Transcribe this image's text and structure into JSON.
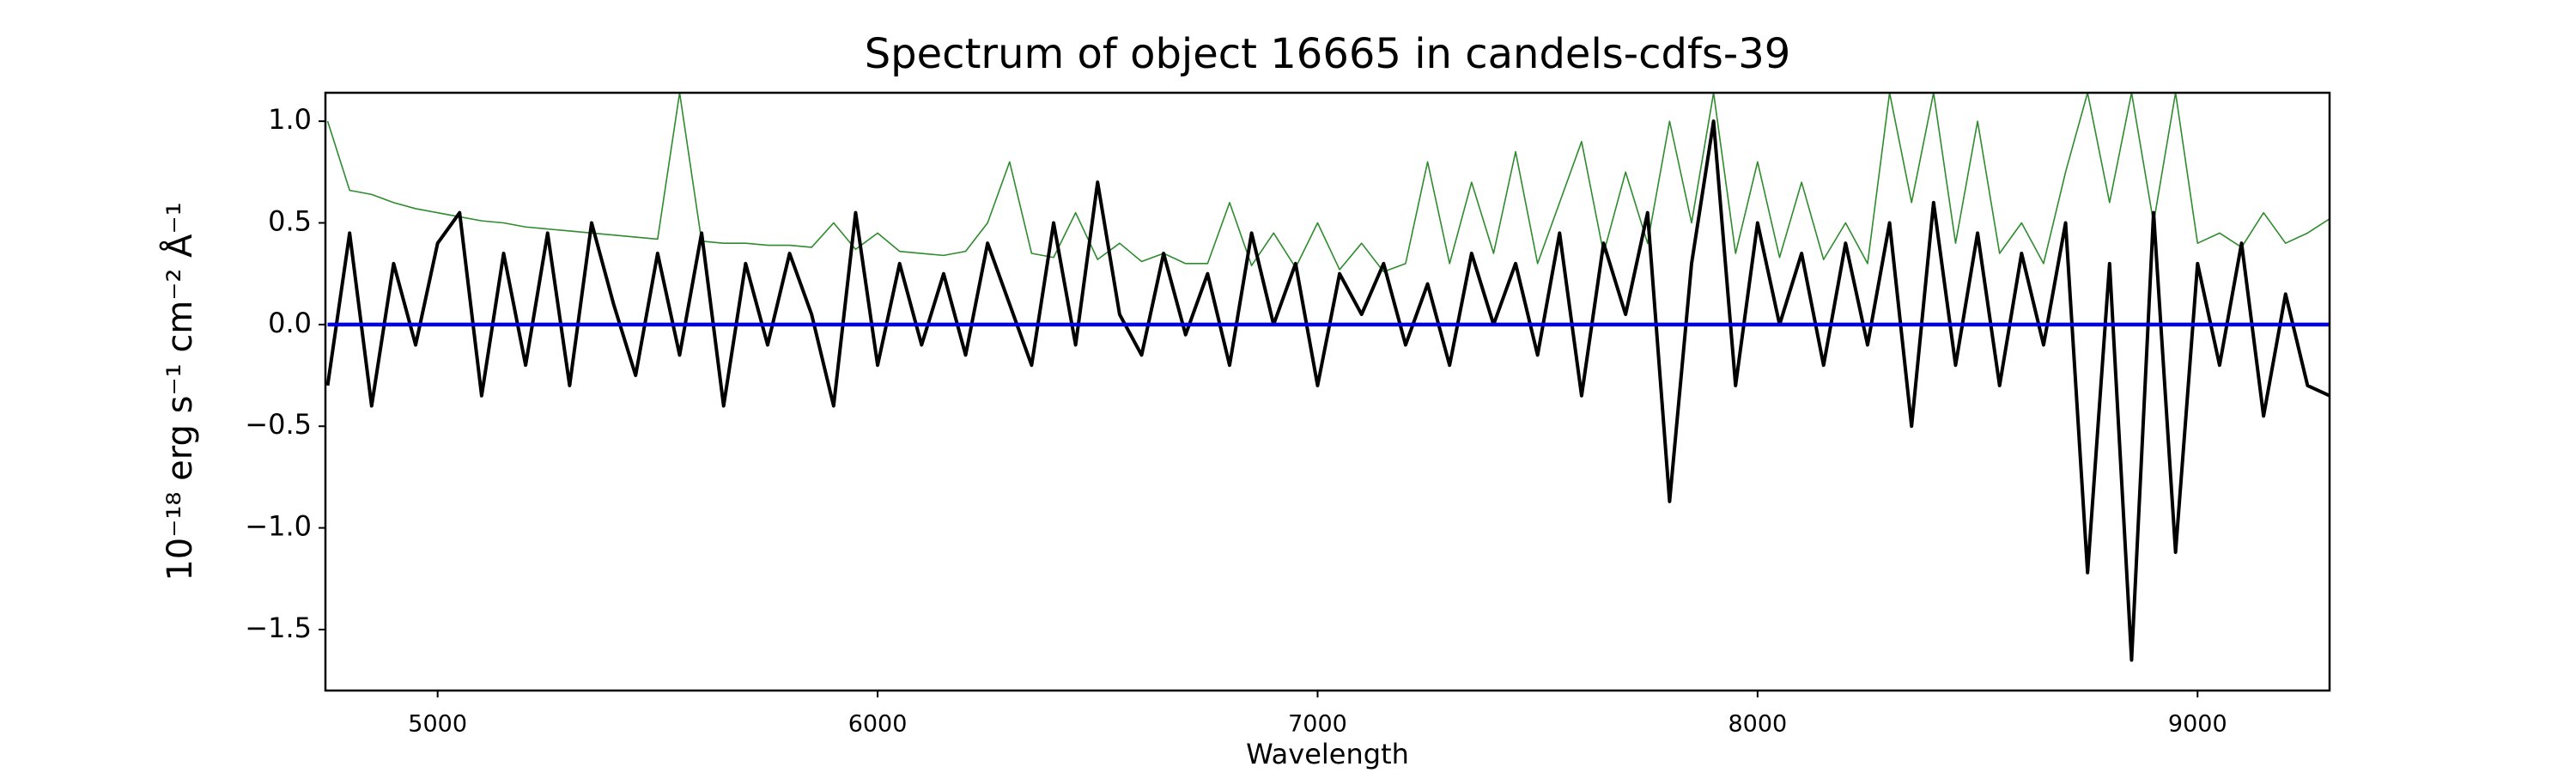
{
  "chart_data": {
    "type": "line",
    "title": "Spectrum of object 16665 in candels-cdfs-39",
    "xlabel": "Wavelength",
    "ylabel": "10⁻¹⁸ erg s⁻¹ cm⁻² Å⁻¹",
    "xlim": [
      4745,
      9300
    ],
    "ylim": [
      -1.8,
      1.14
    ],
    "xticks": [
      5000,
      6000,
      7000,
      8000,
      9000
    ],
    "yticks": [
      {
        "value": -1.5,
        "label": "−1.5"
      },
      {
        "value": -1,
        "label": "−1.0"
      },
      {
        "value": -0.5,
        "label": "−0.5"
      },
      {
        "value": 0,
        "label": "0.0"
      },
      0.5,
      {
        "value": 1,
        "label": "1.0"
      }
    ],
    "grid": false,
    "x": [
      4750,
      4800,
      4850,
      4900,
      4950,
      5000,
      5050,
      5100,
      5150,
      5200,
      5250,
      5300,
      5350,
      5400,
      5450,
      5500,
      5550,
      5600,
      5650,
      5700,
      5750,
      5800,
      5850,
      5900,
      5950,
      6000,
      6050,
      6100,
      6150,
      6200,
      6250,
      6300,
      6350,
      6400,
      6450,
      6500,
      6550,
      6600,
      6650,
      6700,
      6750,
      6800,
      6850,
      6900,
      6950,
      7000,
      7050,
      7100,
      7150,
      7200,
      7250,
      7300,
      7350,
      7400,
      7450,
      7500,
      7550,
      7600,
      7650,
      7700,
      7750,
      7800,
      7850,
      7900,
      7950,
      8000,
      8050,
      8100,
      8150,
      8200,
      8250,
      8300,
      8350,
      8400,
      8450,
      8500,
      8550,
      8600,
      8650,
      8700,
      8750,
      8800,
      8850,
      8900,
      8950,
      9000,
      9050,
      9100,
      9150,
      9200,
      9250,
      9300
    ],
    "series": [
      {
        "color": "#2e8b2e",
        "width": 1.6,
        "values": [
          1.0,
          0.66,
          0.64,
          0.6,
          0.57,
          0.55,
          0.53,
          0.51,
          0.5,
          0.48,
          0.47,
          0.46,
          0.45,
          0.44,
          0.43,
          0.42,
          1.14,
          0.41,
          0.4,
          0.4,
          0.39,
          0.39,
          0.38,
          0.5,
          0.37,
          0.45,
          0.36,
          0.35,
          0.34,
          0.36,
          0.5,
          0.8,
          0.35,
          0.33,
          0.55,
          0.32,
          0.4,
          0.31,
          0.35,
          0.3,
          0.3,
          0.6,
          0.29,
          0.45,
          0.28,
          0.5,
          0.27,
          0.4,
          0.26,
          0.3,
          0.8,
          0.3,
          0.7,
          0.35,
          0.85,
          0.3,
          0.6,
          0.9,
          0.35,
          0.75,
          0.4,
          1.0,
          0.5,
          1.14,
          0.35,
          0.8,
          0.33,
          0.7,
          0.32,
          0.5,
          0.3,
          1.14,
          0.6,
          1.14,
          0.4,
          1.0,
          0.35,
          0.5,
          0.3,
          0.75,
          1.14,
          0.6,
          1.14,
          0.5,
          1.14,
          0.4,
          0.45,
          0.38,
          0.55,
          0.4,
          0.45,
          0.52
        ]
      },
      {
        "color": "#000000",
        "width": 4,
        "values": [
          -0.3,
          0.45,
          -0.4,
          0.3,
          -0.1,
          0.4,
          0.55,
          -0.35,
          0.35,
          -0.2,
          0.45,
          -0.3,
          0.5,
          0.1,
          -0.25,
          0.35,
          -0.15,
          0.45,
          -0.4,
          0.3,
          -0.1,
          0.35,
          0.05,
          -0.4,
          0.55,
          -0.2,
          0.3,
          -0.1,
          0.25,
          -0.15,
          0.4,
          0.1,
          -0.2,
          0.5,
          -0.1,
          0.7,
          0.05,
          -0.15,
          0.35,
          -0.05,
          0.25,
          -0.2,
          0.45,
          0.0,
          0.3,
          -0.3,
          0.25,
          0.05,
          0.3,
          -0.1,
          0.2,
          -0.2,
          0.35,
          0.0,
          0.3,
          -0.15,
          0.45,
          -0.35,
          0.4,
          0.05,
          0.55,
          -0.87,
          0.3,
          1.0,
          -0.3,
          0.5,
          0.0,
          0.35,
          -0.2,
          0.4,
          -0.1,
          0.5,
          -0.5,
          0.6,
          -0.2,
          0.45,
          -0.3,
          0.35,
          -0.1,
          0.5,
          -1.22,
          0.3,
          -1.65,
          0.55,
          -1.12,
          0.3,
          -0.2,
          0.4,
          -0.45,
          0.15,
          -0.3,
          -0.35
        ]
      },
      {
        "color": "#0000dd",
        "width": 4.5,
        "values": [
          0,
          0,
          0,
          0,
          0,
          0,
          0,
          0,
          0,
          0,
          0,
          0,
          0,
          0,
          0,
          0,
          0,
          0,
          0,
          0,
          0,
          0,
          0,
          0,
          0,
          0,
          0,
          0,
          0,
          0,
          0,
          0,
          0,
          0,
          0,
          0,
          0,
          0,
          0,
          0,
          0,
          0,
          0,
          0,
          0,
          0,
          0,
          0,
          0,
          0,
          0,
          0,
          0,
          0,
          0,
          0,
          0,
          0,
          0,
          0,
          0,
          0,
          0,
          0,
          0,
          0,
          0,
          0,
          0,
          0,
          0,
          0,
          0,
          0,
          0,
          0,
          0,
          0,
          0,
          0,
          0,
          0,
          0,
          0,
          0,
          0,
          0,
          0,
          0,
          0,
          0,
          0
        ]
      }
    ]
  }
}
